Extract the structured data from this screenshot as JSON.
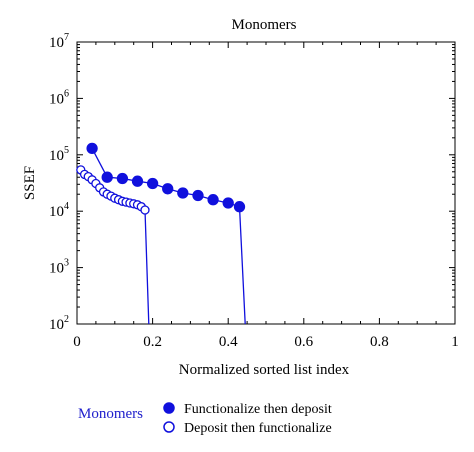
{
  "chart_data": {
    "type": "scatter",
    "title": "Monomers",
    "xlabel": "Normalized sorted list index",
    "ylabel": "SSEF",
    "xlim": [
      0,
      1
    ],
    "ylim_exponent": [
      2,
      7
    ],
    "y_scale": "log",
    "x_ticks": [
      "0",
      "0.2",
      "0.4",
      "0.6",
      "0.8",
      "1"
    ],
    "x_tick_values": [
      0,
      0.2,
      0.4,
      0.6,
      0.8,
      1
    ],
    "y_tick_base": "10",
    "y_tick_exponents": [
      "2",
      "3",
      "4",
      "5",
      "6",
      "7"
    ],
    "grid": false,
    "legend": {
      "position": "bottom",
      "group_label": "Monomers",
      "group_color": "#2020cc"
    },
    "series": [
      {
        "name": "Functionalize then deposit",
        "marker": "filled-circle",
        "color": "#1010dd",
        "points": [
          [
            0.04,
            130000
          ],
          [
            0.08,
            40000
          ],
          [
            0.12,
            38000
          ],
          [
            0.16,
            34000
          ],
          [
            0.2,
            31000
          ],
          [
            0.24,
            25000
          ],
          [
            0.28,
            21000
          ],
          [
            0.32,
            19000
          ],
          [
            0.36,
            16000
          ],
          [
            0.4,
            14000
          ],
          [
            0.43,
            12000
          ]
        ],
        "drop_to_x": 0.445
      },
      {
        "name": "Deposit then functionalize",
        "marker": "open-circle",
        "color": "#1010dd",
        "points": [
          [
            0.01,
            54000
          ],
          [
            0.02,
            45000
          ],
          [
            0.03,
            41000
          ],
          [
            0.04,
            36000
          ],
          [
            0.05,
            31000
          ],
          [
            0.06,
            26000
          ],
          [
            0.07,
            22000
          ],
          [
            0.08,
            20000
          ],
          [
            0.09,
            18500
          ],
          [
            0.1,
            17000
          ],
          [
            0.11,
            16000
          ],
          [
            0.12,
            15000
          ],
          [
            0.13,
            14500
          ],
          [
            0.14,
            14000
          ],
          [
            0.15,
            13500
          ],
          [
            0.16,
            13000
          ],
          [
            0.17,
            12000
          ],
          [
            0.18,
            10500
          ]
        ],
        "drop_to_x": 0.19
      }
    ]
  }
}
